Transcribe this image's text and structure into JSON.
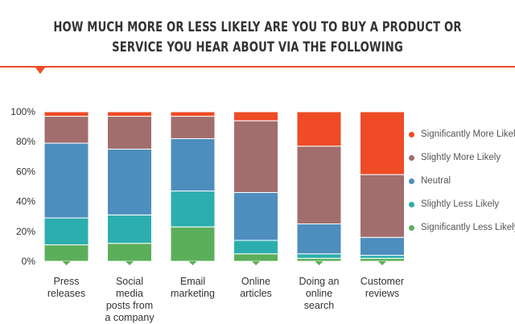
{
  "title_line1": "HOW MUCH MORE OR LESS LIKELY ARE YOU TO BUY A PRODUCT OR",
  "title_line2": "SERVICE YOU HEAR ABOUT VIA THE FOLLOWING",
  "colors": {
    "significantly_more": "#EE4B26",
    "slightly_more": "#A16E6D",
    "neutral": "#4D8EBE",
    "slightly_less": "#2DAEAE",
    "significantly_less": "#5CAF5A",
    "accent": "#EE4B26"
  },
  "chart_data": {
    "type": "bar",
    "stacked": true,
    "categories": [
      "Press releases",
      "Social media posts from a company",
      "Email marketing",
      "Online articles",
      "Doing an online search",
      "Customer reviews"
    ],
    "category_lines": [
      [
        "Press",
        "releases"
      ],
      [
        "Social",
        "media",
        "posts from",
        "a company"
      ],
      [
        "Email",
        "marketing"
      ],
      [
        "Online",
        "articles"
      ],
      [
        "Doing an",
        "online",
        "search"
      ],
      [
        "Customer",
        "reviews"
      ]
    ],
    "series": [
      {
        "name": "Significantly Less Likely",
        "color": "#5CAF5A",
        "values": [
          11,
          12,
          23,
          5,
          2,
          2
        ]
      },
      {
        "name": "Slightly Less Likely",
        "color": "#2DAEAE",
        "values": [
          18,
          19,
          24,
          9,
          3,
          2
        ]
      },
      {
        "name": "Neutral",
        "color": "#4D8EBE",
        "values": [
          50,
          44,
          35,
          32,
          20,
          12
        ]
      },
      {
        "name": "Slightly More Likely",
        "color": "#A16E6D",
        "values": [
          18,
          22,
          15,
          48,
          52,
          42
        ]
      },
      {
        "name": "Significantly More Likely",
        "color": "#EE4B26",
        "values": [
          3,
          3,
          3,
          6,
          23,
          42
        ]
      }
    ],
    "legend_order": [
      "Significantly More Likely",
      "Slightly More Likely",
      "Neutral",
      "Slightly Less Likely",
      "Significantly Less Likely"
    ],
    "y_ticks": [
      "0%",
      "20%",
      "40%",
      "60%",
      "80%",
      "100%"
    ],
    "ylim": [
      0,
      100
    ],
    "legend_position": "right",
    "grid": false
  }
}
